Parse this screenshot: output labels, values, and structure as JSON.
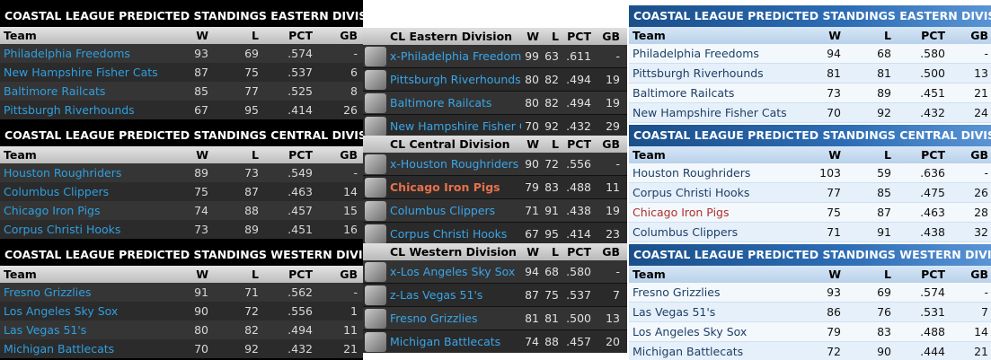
{
  "columns": {
    "team": "Team",
    "w": "W",
    "l": "L",
    "pct": "PCT",
    "gb": "GB"
  },
  "panel1": {
    "divisions": [
      {
        "title": "COASTAL LEAGUE PREDICTED STANDINGS EASTERN DIVISION",
        "rows": [
          {
            "team": "Philadelphia Freedoms",
            "w": "93",
            "l": "69",
            "pct": ".574",
            "gb": "-"
          },
          {
            "team": "New Hampshire Fisher Cats",
            "w": "87",
            "l": "75",
            "pct": ".537",
            "gb": "6"
          },
          {
            "team": "Baltimore Railcats",
            "w": "85",
            "l": "77",
            "pct": ".525",
            "gb": "8"
          },
          {
            "team": "Pittsburgh Riverhounds",
            "w": "67",
            "l": "95",
            "pct": ".414",
            "gb": "26"
          }
        ]
      },
      {
        "title": "COASTAL LEAGUE PREDICTED STANDINGS CENTRAL DIVISION",
        "rows": [
          {
            "team": "Houston Roughriders",
            "w": "89",
            "l": "73",
            "pct": ".549",
            "gb": "-"
          },
          {
            "team": "Columbus Clippers",
            "w": "75",
            "l": "87",
            "pct": ".463",
            "gb": "14"
          },
          {
            "team": "Chicago Iron Pigs",
            "w": "74",
            "l": "88",
            "pct": ".457",
            "gb": "15"
          },
          {
            "team": "Corpus Christi Hooks",
            "w": "73",
            "l": "89",
            "pct": ".451",
            "gb": "16"
          }
        ]
      },
      {
        "title": "COASTAL LEAGUE PREDICTED STANDINGS WESTERN DIVISION",
        "rows": [
          {
            "team": "Fresno Grizzlies",
            "w": "91",
            "l": "71",
            "pct": ".562",
            "gb": "-"
          },
          {
            "team": "Los Angeles Sky Sox",
            "w": "90",
            "l": "72",
            "pct": ".556",
            "gb": "1"
          },
          {
            "team": "Las Vegas 51's",
            "w": "80",
            "l": "82",
            "pct": ".494",
            "gb": "11"
          },
          {
            "team": "Michigan Battlecats",
            "w": "70",
            "pct": ".432",
            "l": "92",
            "gb": "21"
          }
        ]
      }
    ]
  },
  "panel2": {
    "divisions": [
      {
        "title": "CL Eastern Division",
        "rows": [
          {
            "team": "x-Philadelphia Freedoms",
            "w": "99",
            "l": "63",
            "pct": ".611",
            "gb": "-",
            "logo": "freedoms-logo"
          },
          {
            "team": "Pittsburgh Riverhounds",
            "w": "80",
            "l": "82",
            "pct": ".494",
            "gb": "19",
            "logo": "riverhounds-logo"
          },
          {
            "team": "Baltimore Railcats",
            "w": "80",
            "l": "82",
            "pct": ".494",
            "gb": "19",
            "logo": "railcats-logo"
          },
          {
            "team": "New Hampshire Fisher Ca",
            "w": "70",
            "l": "92",
            "pct": ".432",
            "gb": "29",
            "logo": "fisher-cats-logo"
          }
        ]
      },
      {
        "title": "CL Central Division",
        "rows": [
          {
            "team": "x-Houston Roughriders",
            "w": "90",
            "l": "72",
            "pct": ".556",
            "gb": "-",
            "logo": "roughriders-logo"
          },
          {
            "team": "Chicago Iron Pigs",
            "w": "79",
            "l": "83",
            "pct": ".488",
            "gb": "11",
            "logo": "iron-pigs-logo",
            "highlight": true
          },
          {
            "team": "Columbus Clippers",
            "w": "71",
            "l": "91",
            "pct": ".438",
            "gb": "19",
            "logo": "clippers-logo"
          },
          {
            "team": "Corpus Christi Hooks",
            "w": "67",
            "l": "95",
            "pct": ".414",
            "gb": "23",
            "logo": "hooks-logo"
          }
        ]
      },
      {
        "title": "CL Western Division",
        "rows": [
          {
            "team": "x-Los Angeles Sky Sox",
            "w": "94",
            "l": "68",
            "pct": ".580",
            "gb": "-",
            "logo": "sky-sox-logo"
          },
          {
            "team": "z-Las Vegas 51's",
            "w": "87",
            "l": "75",
            "pct": ".537",
            "gb": "7",
            "logo": "vegas-51s-logo"
          },
          {
            "team": "Fresno Grizzlies",
            "w": "81",
            "l": "81",
            "pct": ".500",
            "gb": "13",
            "logo": "grizzlies-logo"
          },
          {
            "team": "Michigan Battlecats",
            "w": "74",
            "l": "88",
            "pct": ".457",
            "gb": "20",
            "logo": "battlecats-logo"
          }
        ]
      }
    ]
  },
  "panel3": {
    "divisions": [
      {
        "title": "COASTAL LEAGUE PREDICTED STANDINGS EASTERN DIVISION",
        "rows": [
          {
            "team": "Philadelphia Freedoms",
            "w": "94",
            "l": "68",
            "pct": ".580",
            "gb": "-"
          },
          {
            "team": "Pittsburgh Riverhounds",
            "w": "81",
            "l": "81",
            "pct": ".500",
            "gb": "13"
          },
          {
            "team": "Baltimore Railcats",
            "w": "73",
            "l": "89",
            "pct": ".451",
            "gb": "21"
          },
          {
            "team": "New Hampshire Fisher Cats",
            "w": "70",
            "l": "92",
            "pct": ".432",
            "gb": "24"
          }
        ]
      },
      {
        "title": "COASTAL LEAGUE PREDICTED STANDINGS CENTRAL DIVISION",
        "rows": [
          {
            "team": "Houston Roughriders",
            "w": "103",
            "l": "59",
            "pct": ".636",
            "gb": "-"
          },
          {
            "team": "Corpus Christi Hooks",
            "w": "77",
            "l": "85",
            "pct": ".475",
            "gb": "26"
          },
          {
            "team": "Chicago Iron Pigs",
            "w": "75",
            "l": "87",
            "pct": ".463",
            "gb": "28",
            "highlight": true
          },
          {
            "team": "Columbus Clippers",
            "w": "71",
            "l": "91",
            "pct": ".438",
            "gb": "32"
          }
        ]
      },
      {
        "title": "COASTAL LEAGUE PREDICTED STANDINGS WESTERN DIVISION",
        "rows": [
          {
            "team": "Fresno Grizzlies",
            "w": "93",
            "l": "69",
            "pct": ".574",
            "gb": "-"
          },
          {
            "team": "Las Vegas 51's",
            "w": "86",
            "l": "76",
            "pct": ".531",
            "gb": "7"
          },
          {
            "team": "Los Angeles Sky Sox",
            "w": "79",
            "l": "83",
            "pct": ".488",
            "gb": "14"
          },
          {
            "team": "Michigan Battlecats",
            "w": "72",
            "l": "90",
            "pct": ".444",
            "gb": "21"
          }
        ]
      }
    ]
  }
}
